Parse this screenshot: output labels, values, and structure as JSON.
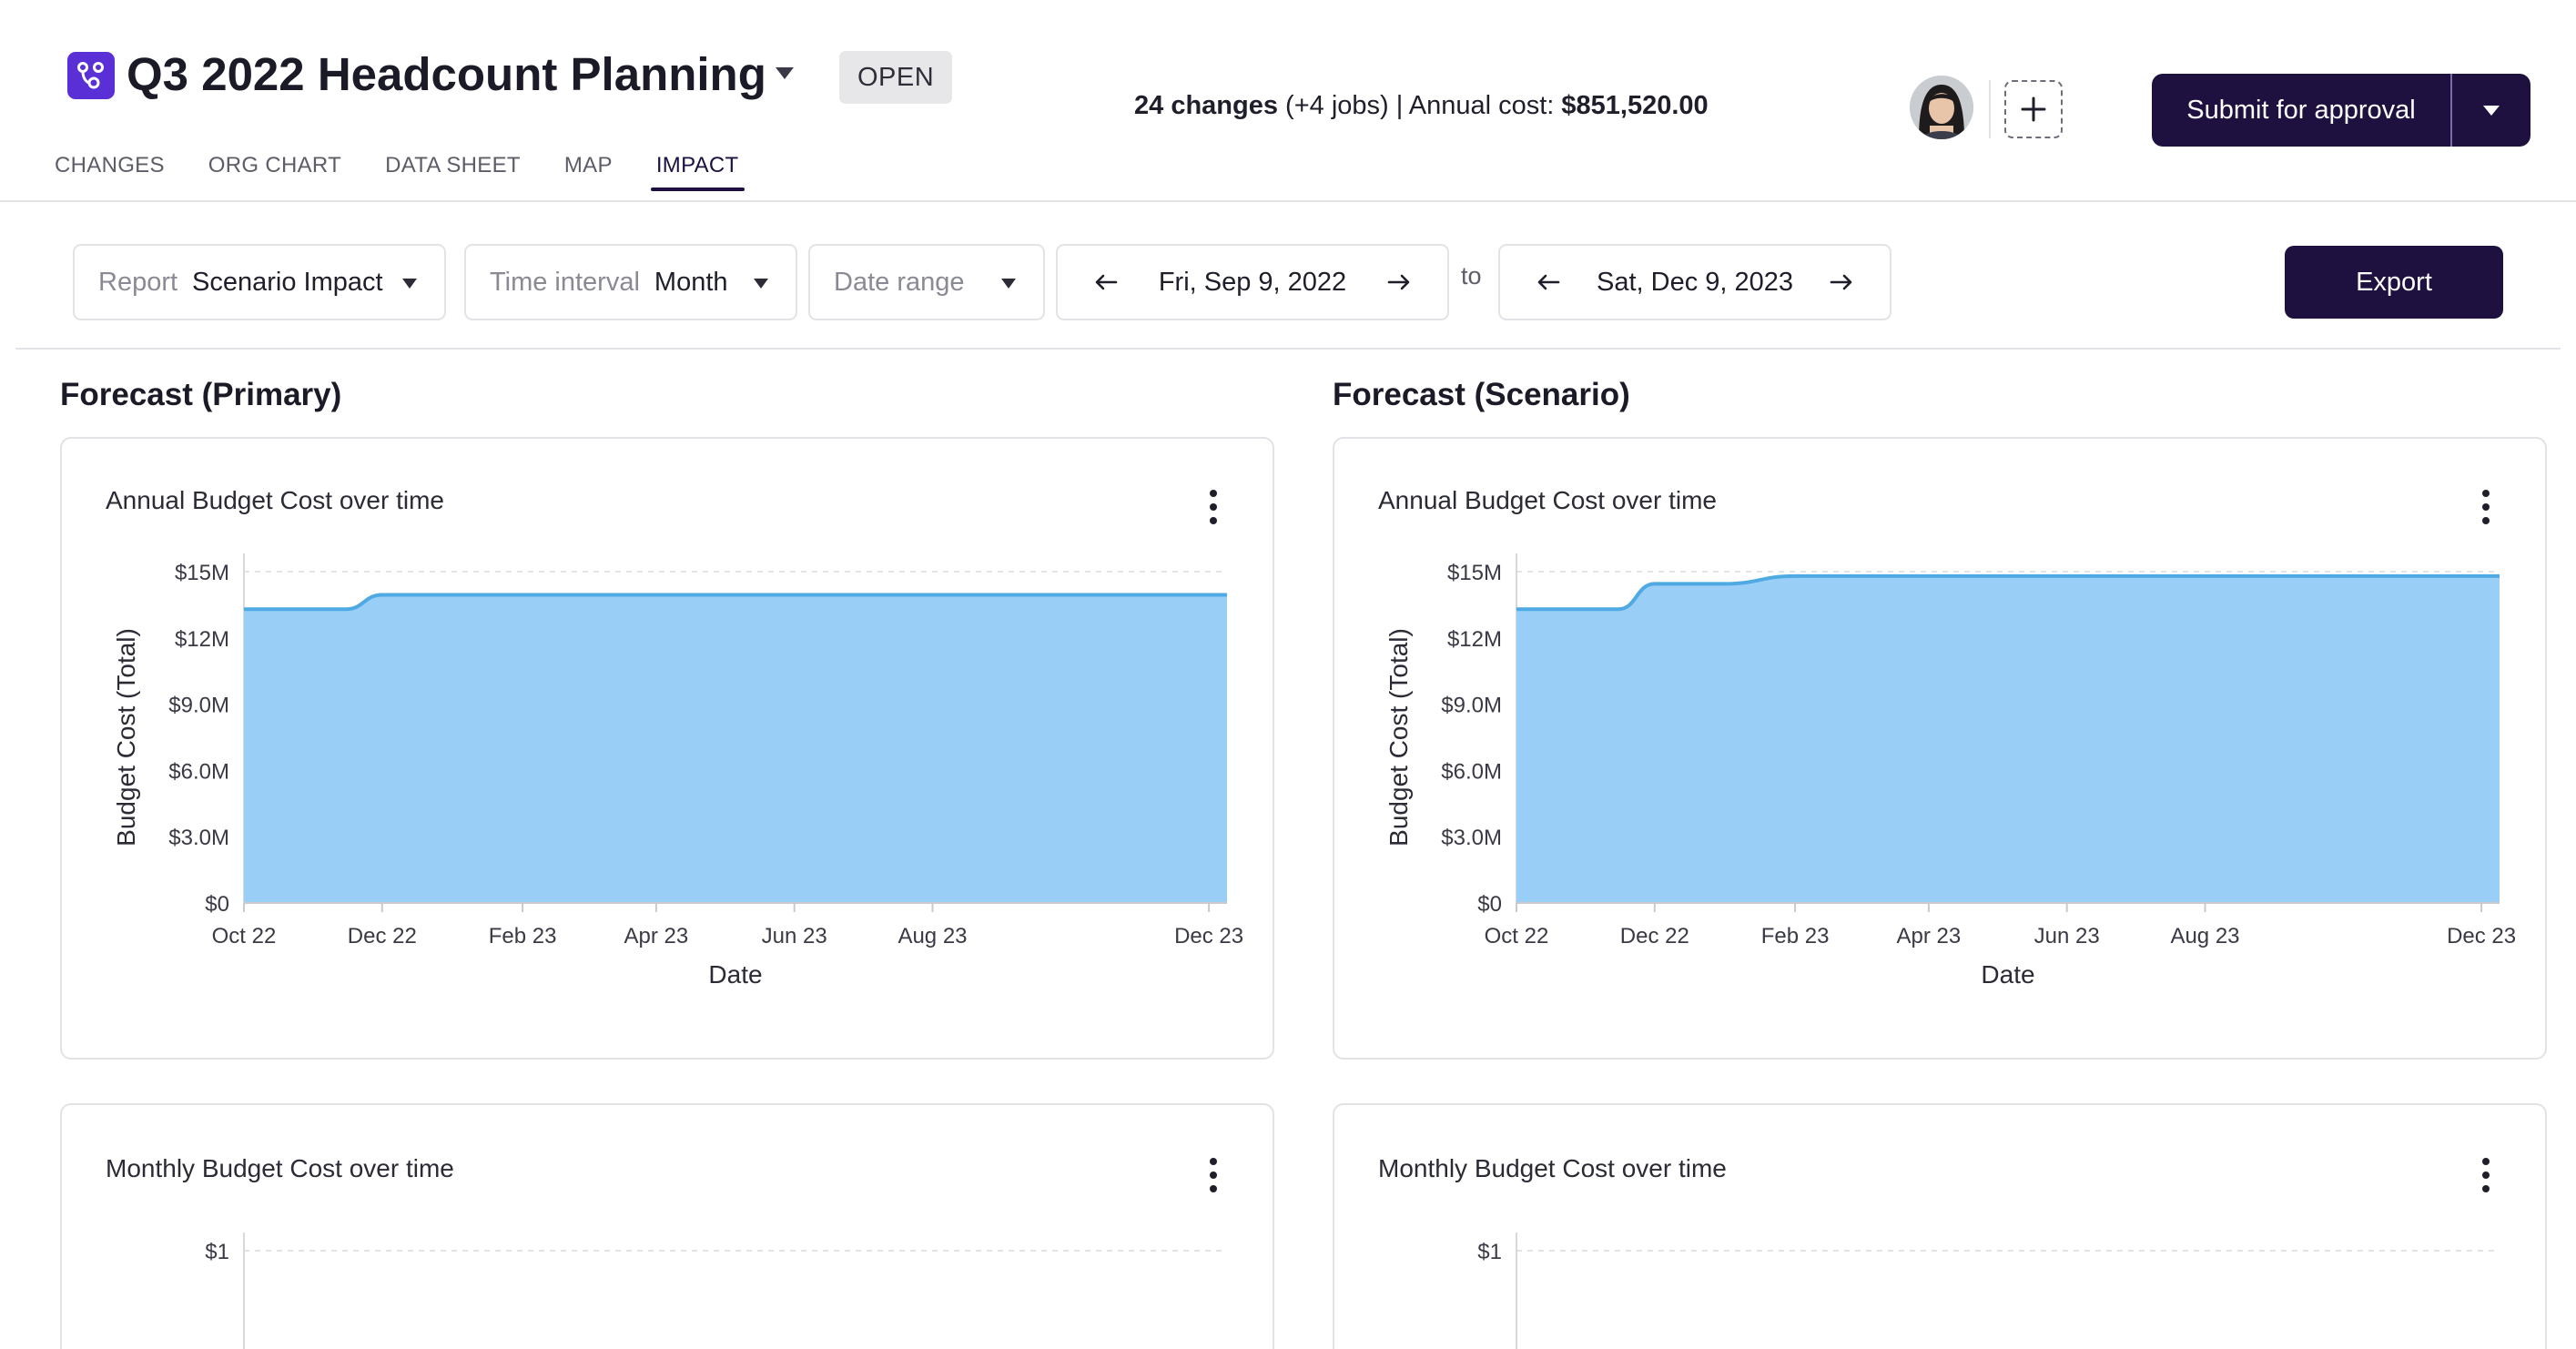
{
  "header": {
    "title": "Q3 2022 Headcount Planning",
    "status": "OPEN",
    "summary": {
      "changes": "24 changes",
      "jobs": " (+4 jobs) | Annual cost: ",
      "annual_cost": "$851,520.00"
    },
    "submit_label": "Submit for approval",
    "icons": {
      "app": "scenario-branch-icon",
      "add": "plus-icon",
      "title_menu": "caret-down-icon"
    }
  },
  "tabs": [
    {
      "label": "CHANGES",
      "active": false
    },
    {
      "label": "ORG CHART",
      "active": false
    },
    {
      "label": "DATA SHEET",
      "active": false
    },
    {
      "label": "MAP",
      "active": false
    },
    {
      "label": "IMPACT",
      "active": true
    }
  ],
  "filters": {
    "report": {
      "label": "Report",
      "value": "Scenario Impact"
    },
    "interval": {
      "label": "Time interval",
      "value": "Month"
    },
    "date_range": {
      "label": "Date range"
    },
    "start_date": "Fri, Sep 9, 2022",
    "to": "to",
    "end_date": "Sat, Dec 9, 2023",
    "export_label": "Export"
  },
  "sections": {
    "primary": "Forecast (Primary)",
    "scenario": "Forecast (Scenario)"
  },
  "cards": {
    "annual_title": "Annual Budget Cost over time",
    "monthly_title": "Monthly Budget Cost over time"
  },
  "colors": {
    "accent": "#1e1140",
    "area_fill": "#99cff7",
    "area_line": "#4fa9e3",
    "app_icon": "#5b2fd6"
  },
  "chart_data": [
    {
      "type": "area",
      "title": "Annual Budget Cost over time",
      "section": "Forecast (Primary)",
      "xlabel": "Date",
      "ylabel": "Budget Cost (Total)",
      "x_ticks": [
        "Oct 22",
        "Dec 22",
        "Feb 23",
        "Apr 23",
        "Jun 23",
        "Aug 23",
        "Dec 23"
      ],
      "y_ticks": [
        "$0",
        "$3.0M",
        "$6.0M",
        "$9.0M",
        "$12M",
        "$15M"
      ],
      "ylim": [
        0,
        15000000
      ],
      "x": [
        "2022-10-01",
        "2022-11-01",
        "2022-11-15",
        "2022-12-01",
        "2023-01-01",
        "2023-02-01",
        "2023-03-01",
        "2023-04-01",
        "2023-05-01",
        "2023-06-01",
        "2023-07-01",
        "2023-08-01",
        "2023-09-01",
        "2023-10-01",
        "2023-11-01",
        "2023-12-01",
        "2023-12-09"
      ],
      "values": [
        13300000,
        13300000,
        13300000,
        13950000,
        13950000,
        13950000,
        13950000,
        13950000,
        13950000,
        13950000,
        13950000,
        13950000,
        13950000,
        13950000,
        13950000,
        13950000,
        13950000
      ],
      "grid": true
    },
    {
      "type": "area",
      "title": "Annual Budget Cost over time",
      "section": "Forecast (Scenario)",
      "xlabel": "Date",
      "ylabel": "Budget Cost (Total)",
      "x_ticks": [
        "Oct 22",
        "Dec 22",
        "Feb 23",
        "Apr 23",
        "Jun 23",
        "Aug 23",
        "Dec 23"
      ],
      "y_ticks": [
        "$0",
        "$3.0M",
        "$6.0M",
        "$9.0M",
        "$12M",
        "$15M"
      ],
      "ylim": [
        0,
        15000000
      ],
      "x": [
        "2022-10-01",
        "2022-11-01",
        "2022-11-15",
        "2022-12-01",
        "2023-01-01",
        "2023-02-01",
        "2023-03-01",
        "2023-04-01",
        "2023-05-01",
        "2023-06-01",
        "2023-07-01",
        "2023-08-01",
        "2023-09-01",
        "2023-10-01",
        "2023-11-01",
        "2023-12-01",
        "2023-12-09"
      ],
      "values": [
        13300000,
        13300000,
        13300000,
        14450000,
        14450000,
        14800000,
        14800000,
        14800000,
        14800000,
        14800000,
        14800000,
        14800000,
        14800000,
        14800000,
        14800000,
        14800000,
        14800000
      ],
      "grid": true
    },
    {
      "type": "area",
      "title": "Monthly Budget Cost over time",
      "section": "Forecast (Primary)",
      "y_ticks": [
        "$1"
      ],
      "grid": true
    },
    {
      "type": "area",
      "title": "Monthly Budget Cost over time",
      "section": "Forecast (Scenario)",
      "y_ticks": [
        "$1"
      ],
      "grid": true
    }
  ]
}
